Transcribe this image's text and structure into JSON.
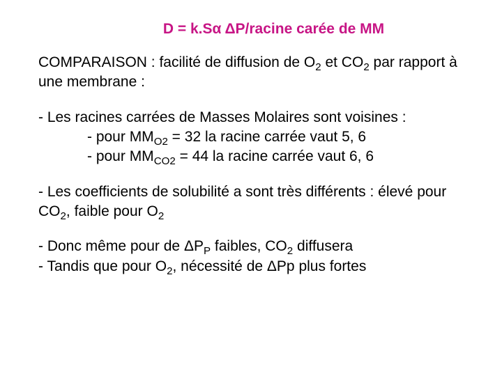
{
  "title_prefix": "D = k.S",
  "title_alpha": "α",
  "title_delta": " Δ",
  "title_rest": "P/racine carée de MM",
  "p1a": "COMPARAISON  : facilité de diffusion de O",
  "p1b": " et CO",
  "p1c": " par rapport à une membrane :",
  "p2a": "- Les racines carrées de Masses Molaires sont voisines :",
  "p2b": "- pour MM",
  "p2b_sub": "O2",
  "p2b_rest": " = 32 la racine carrée vaut 5, 6",
  "p2c": "- pour MM",
  "p2c_sub": "CO2",
  "p2c_rest": " = 44 la racine carrée vaut 6, 6",
  "p3a": "- Les coefficients de solubilité a sont très différents : élevé pour CO",
  "p3b": ", faible pour O",
  "p4a": "- Donc même pour de ",
  "p4a_delta": "Δ",
  "p4a_rest": "P",
  "p4a_sub": "P",
  "p4a_end": " faibles, CO",
  "p4a_end2": " diffusera",
  "p4b": "- Tandis que pour O",
  "p4b_mid": ", nécessité de ",
  "p4b_delta": "Δ",
  "p4b_rest": "Pp plus fortes",
  "sub2": "2",
  "colors": {
    "title": "#c71585",
    "text": "#000000",
    "background": "#ffffff"
  },
  "font_size": 21
}
